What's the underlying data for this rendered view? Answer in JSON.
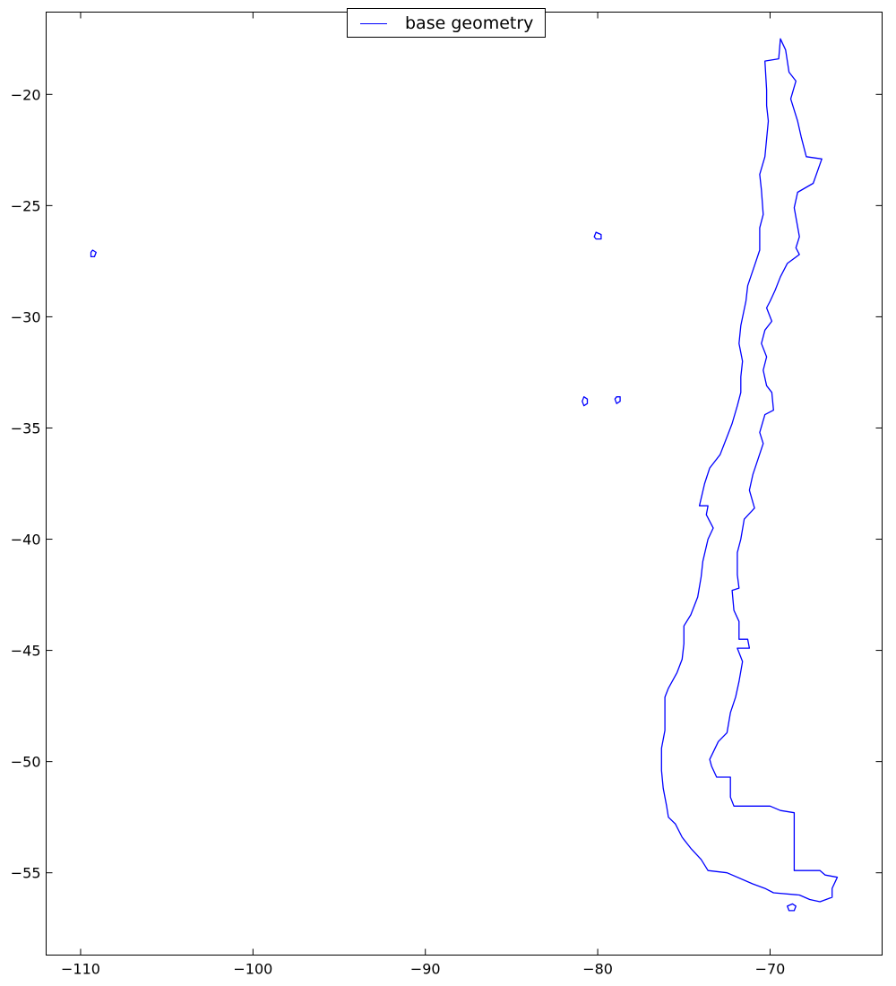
{
  "chart_data": {
    "type": "line",
    "title": "",
    "xlabel": "",
    "ylabel": "",
    "xlim": [
      -112,
      -63.5
    ],
    "ylim": [
      -58.7,
      -16.3
    ],
    "x_ticks": [
      -110,
      -100,
      -90,
      -80,
      -70
    ],
    "y_ticks": [
      -20,
      -25,
      -30,
      -35,
      -40,
      -45,
      -50,
      -55
    ],
    "x_tick_labels": [
      "−110",
      "−100",
      "−90",
      "−80",
      "−70"
    ],
    "y_tick_labels": [
      "−20",
      "−25",
      "−30",
      "−35",
      "−40",
      "−45",
      "−50",
      "−55"
    ],
    "legend": {
      "placement": "top-center",
      "entries": [
        "base geometry"
      ]
    },
    "grid": false,
    "series": [
      {
        "name": "base geometry",
        "color": "#0000ff",
        "parts": [
          {
            "part": "mainland",
            "closed": true,
            "points": [
              [
                -69.4,
                -17.5
              ],
              [
                -69.1,
                -18.0
              ],
              [
                -68.9,
                -19.0
              ],
              [
                -68.5,
                -19.4
              ],
              [
                -68.8,
                -20.2
              ],
              [
                -68.4,
                -21.2
              ],
              [
                -68.2,
                -21.9
              ],
              [
                -67.9,
                -22.8
              ],
              [
                -67.0,
                -22.9
              ],
              [
                -67.5,
                -24.0
              ],
              [
                -68.4,
                -24.4
              ],
              [
                -68.6,
                -25.1
              ],
              [
                -68.3,
                -26.4
              ],
              [
                -68.5,
                -26.9
              ],
              [
                -68.3,
                -27.2
              ],
              [
                -69.0,
                -27.6
              ],
              [
                -69.4,
                -28.2
              ],
              [
                -69.7,
                -28.8
              ],
              [
                -70.0,
                -29.3
              ],
              [
                -70.2,
                -29.6
              ],
              [
                -69.9,
                -30.2
              ],
              [
                -70.3,
                -30.6
              ],
              [
                -70.5,
                -31.2
              ],
              [
                -70.2,
                -31.8
              ],
              [
                -70.4,
                -32.4
              ],
              [
                -70.2,
                -33.1
              ],
              [
                -69.9,
                -33.4
              ],
              [
                -69.8,
                -34.2
              ],
              [
                -70.3,
                -34.4
              ],
              [
                -70.6,
                -35.2
              ],
              [
                -70.4,
                -35.7
              ],
              [
                -70.7,
                -36.4
              ],
              [
                -71.0,
                -37.1
              ],
              [
                -71.2,
                -37.8
              ],
              [
                -70.9,
                -38.6
              ],
              [
                -71.5,
                -39.1
              ],
              [
                -71.7,
                -40.0
              ],
              [
                -71.9,
                -40.6
              ],
              [
                -71.9,
                -41.6
              ],
              [
                -71.8,
                -42.2
              ],
              [
                -72.2,
                -42.3
              ],
              [
                -72.1,
                -43.2
              ],
              [
                -71.8,
                -43.7
              ],
              [
                -71.8,
                -44.5
              ],
              [
                -71.3,
                -44.5
              ],
              [
                -71.2,
                -44.9
              ],
              [
                -71.9,
                -44.9
              ],
              [
                -71.6,
                -45.5
              ],
              [
                -71.8,
                -46.4
              ],
              [
                -72.0,
                -47.1
              ],
              [
                -72.3,
                -47.8
              ],
              [
                -72.5,
                -48.7
              ],
              [
                -73.0,
                -49.1
              ],
              [
                -73.5,
                -49.9
              ],
              [
                -73.4,
                -50.2
              ],
              [
                -73.1,
                -50.7
              ],
              [
                -72.3,
                -50.7
              ],
              [
                -72.3,
                -51.6
              ],
              [
                -72.1,
                -52.0
              ],
              [
                -70.0,
                -52.0
              ],
              [
                -69.4,
                -52.2
              ],
              [
                -68.6,
                -52.3
              ],
              [
                -68.6,
                -54.9
              ],
              [
                -67.1,
                -54.9
              ],
              [
                -66.8,
                -55.1
              ],
              [
                -66.1,
                -55.2
              ],
              [
                -66.4,
                -55.7
              ],
              [
                -66.4,
                -56.1
              ],
              [
                -67.1,
                -56.3
              ],
              [
                -67.7,
                -56.2
              ],
              [
                -68.3,
                -56.0
              ],
              [
                -69.8,
                -55.9
              ],
              [
                -70.3,
                -55.7
              ],
              [
                -71.0,
                -55.5
              ],
              [
                -72.5,
                -55.0
              ],
              [
                -73.6,
                -54.9
              ],
              [
                -74.0,
                -54.4
              ],
              [
                -74.6,
                -53.9
              ],
              [
                -75.1,
                -53.4
              ],
              [
                -75.5,
                -52.8
              ],
              [
                -75.9,
                -52.5
              ],
              [
                -76.0,
                -52.0
              ],
              [
                -76.2,
                -51.2
              ],
              [
                -76.3,
                -50.4
              ],
              [
                -76.3,
                -49.4
              ],
              [
                -76.1,
                -48.6
              ],
              [
                -76.1,
                -48.0
              ],
              [
                -76.1,
                -47.1
              ],
              [
                -75.9,
                -46.7
              ],
              [
                -75.4,
                -46.0
              ],
              [
                -75.1,
                -45.4
              ],
              [
                -75.0,
                -44.7
              ],
              [
                -75.0,
                -43.9
              ],
              [
                -74.6,
                -43.4
              ],
              [
                -74.2,
                -42.6
              ],
              [
                -74.0,
                -41.7
              ],
              [
                -73.9,
                -41.0
              ],
              [
                -73.6,
                -40.0
              ],
              [
                -73.3,
                -39.5
              ],
              [
                -73.7,
                -38.9
              ],
              [
                -73.6,
                -38.5
              ],
              [
                -74.1,
                -38.5
              ],
              [
                -73.8,
                -37.5
              ],
              [
                -73.5,
                -36.8
              ],
              [
                -72.9,
                -36.2
              ],
              [
                -72.5,
                -35.4
              ],
              [
                -72.2,
                -34.8
              ],
              [
                -71.9,
                -34.0
              ],
              [
                -71.7,
                -33.4
              ],
              [
                -71.7,
                -32.7
              ],
              [
                -71.6,
                -32.0
              ],
              [
                -71.8,
                -31.2
              ],
              [
                -71.7,
                -30.4
              ],
              [
                -71.4,
                -29.3
              ],
              [
                -71.3,
                -28.6
              ],
              [
                -70.9,
                -27.7
              ],
              [
                -70.6,
                -27.0
              ],
              [
                -70.6,
                -26.0
              ],
              [
                -70.4,
                -25.4
              ],
              [
                -70.5,
                -24.3
              ],
              [
                -70.6,
                -23.6
              ],
              [
                -70.3,
                -22.8
              ],
              [
                -70.2,
                -22.0
              ],
              [
                -70.1,
                -21.2
              ],
              [
                -70.2,
                -20.5
              ],
              [
                -70.2,
                -19.8
              ],
              [
                -70.3,
                -18.5
              ],
              [
                -69.5,
                -18.4
              ],
              [
                -69.4,
                -17.5
              ]
            ]
          },
          {
            "part": "easter-island",
            "closed": true,
            "points": [
              [
                -109.3,
                -27.0
              ],
              [
                -109.1,
                -27.1
              ],
              [
                -109.2,
                -27.3
              ],
              [
                -109.4,
                -27.3
              ],
              [
                -109.4,
                -27.1
              ],
              [
                -109.3,
                -27.0
              ]
            ]
          },
          {
            "part": "san-felix-island",
            "closed": true,
            "points": [
              [
                -80.1,
                -26.2
              ],
              [
                -79.8,
                -26.3
              ],
              [
                -79.8,
                -26.5
              ],
              [
                -80.1,
                -26.5
              ],
              [
                -80.2,
                -26.4
              ],
              [
                -80.1,
                -26.2
              ]
            ]
          },
          {
            "part": "alejandro-selkirk-island",
            "closed": true,
            "points": [
              [
                -80.8,
                -33.6
              ],
              [
                -80.6,
                -33.7
              ],
              [
                -80.6,
                -33.9
              ],
              [
                -80.8,
                -34.0
              ],
              [
                -80.9,
                -33.8
              ],
              [
                -80.8,
                -33.6
              ]
            ]
          },
          {
            "part": "robinson-crusoe-island",
            "closed": true,
            "points": [
              [
                -78.9,
                -33.6
              ],
              [
                -78.7,
                -33.6
              ],
              [
                -78.7,
                -33.8
              ],
              [
                -78.9,
                -33.9
              ],
              [
                -79.0,
                -33.7
              ],
              [
                -78.9,
                -33.6
              ]
            ]
          },
          {
            "part": "diego-ramirez-island",
            "closed": true,
            "points": [
              [
                -68.7,
                -56.4
              ],
              [
                -68.5,
                -56.5
              ],
              [
                -68.6,
                -56.7
              ],
              [
                -68.9,
                -56.7
              ],
              [
                -69.0,
                -56.5
              ],
              [
                -68.7,
                -56.4
              ]
            ]
          }
        ]
      }
    ]
  }
}
